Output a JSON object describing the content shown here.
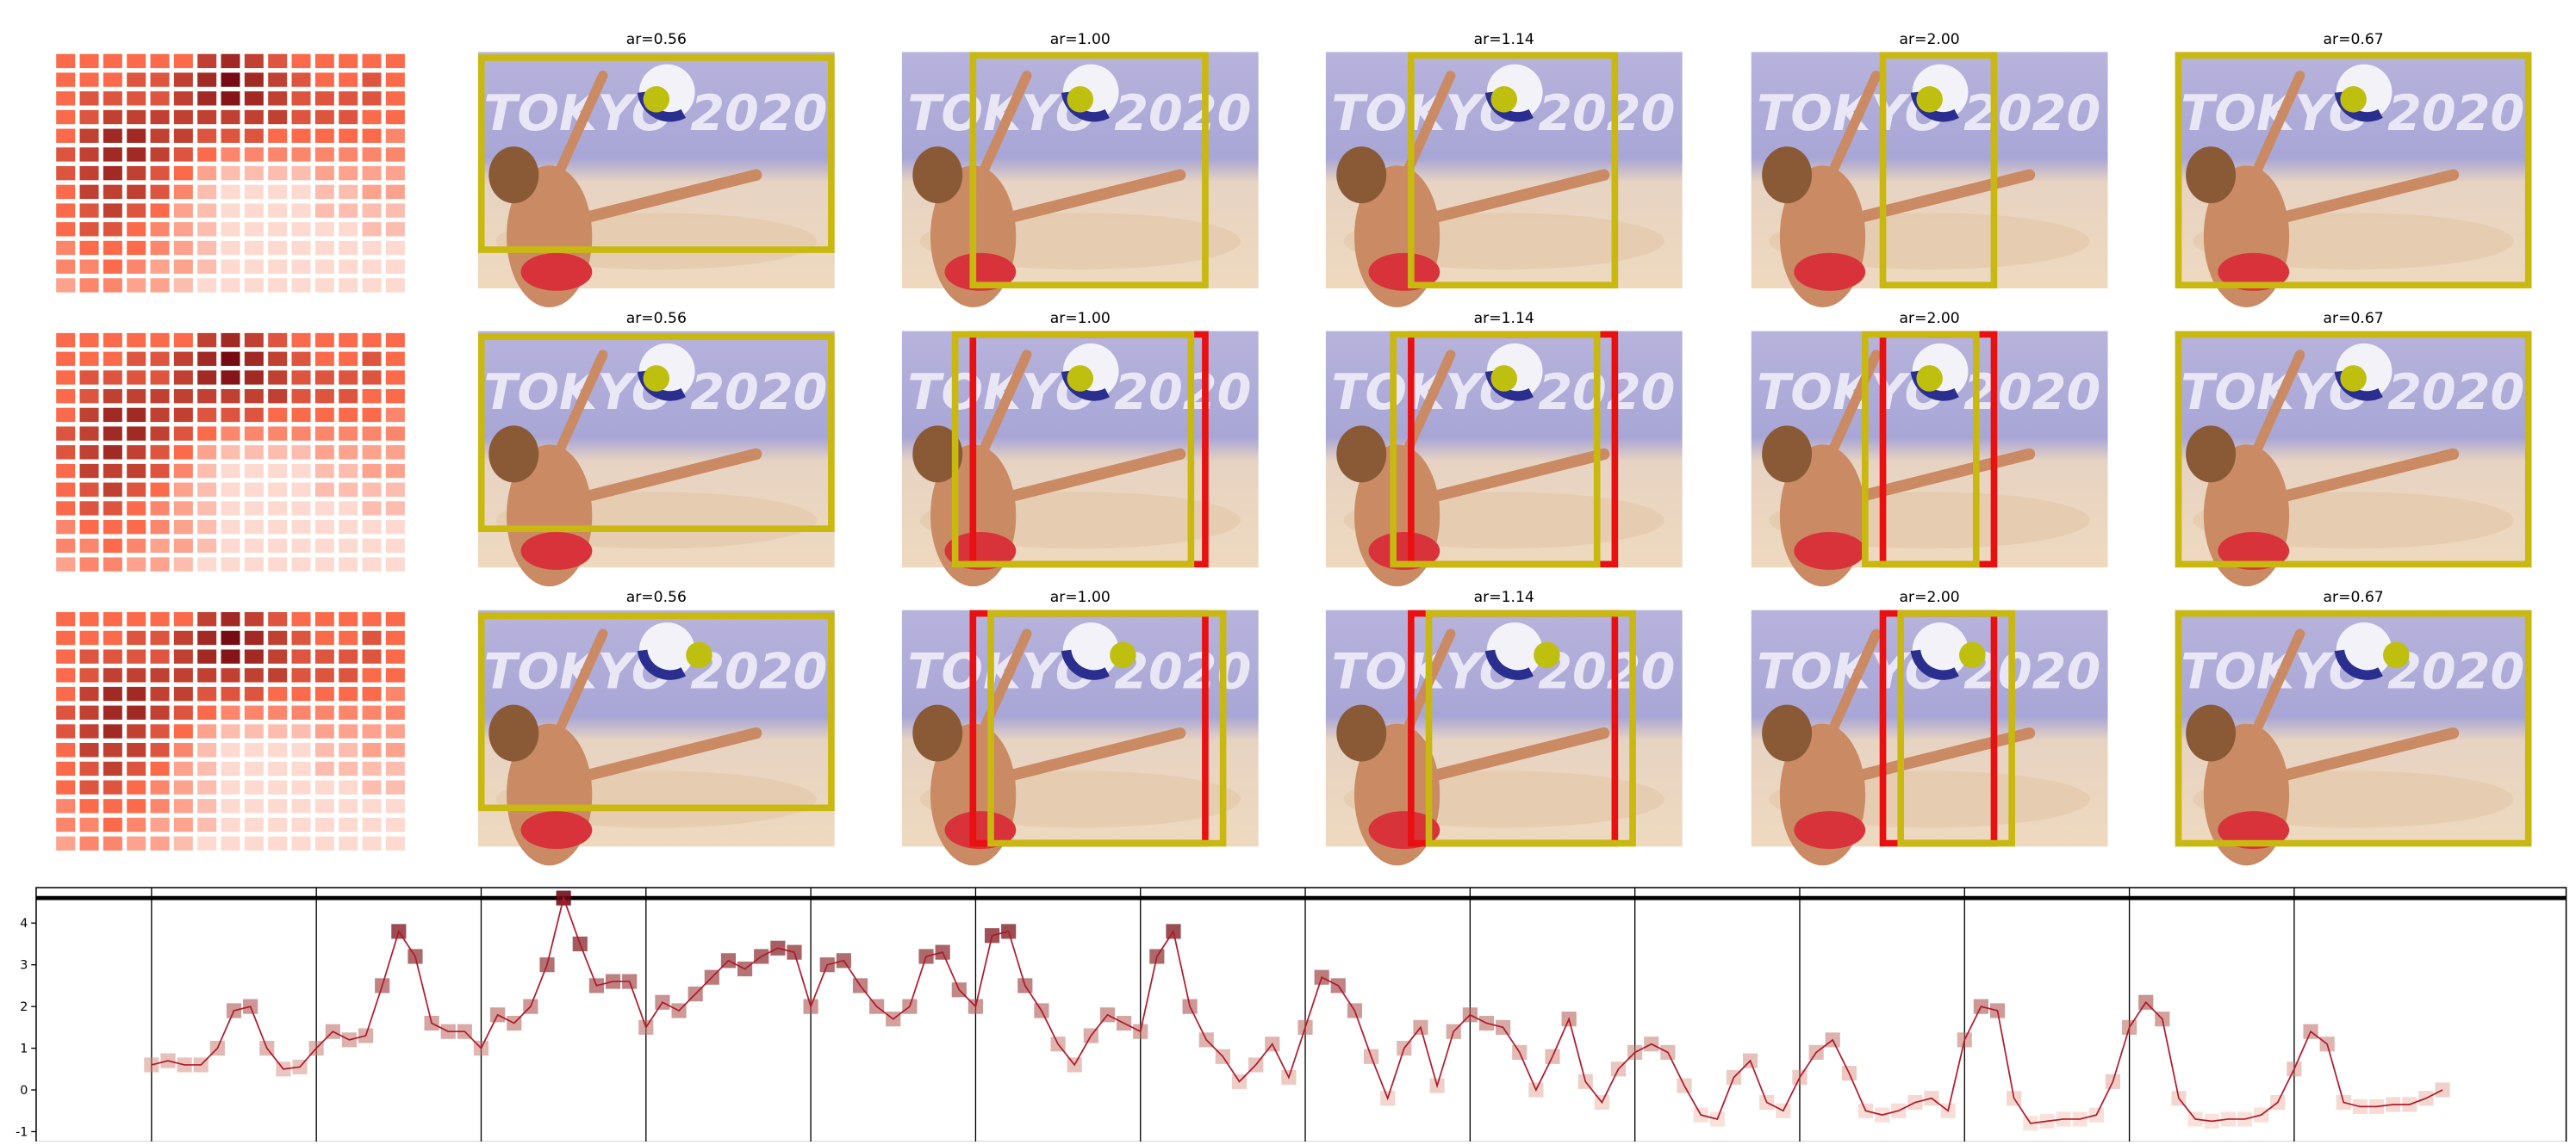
{
  "rows": [
    {
      "titles": [
        "ar=0.56",
        "ar=1.00",
        "ar=1.14",
        "ar=2.00",
        "ar=0.67"
      ]
    },
    {
      "titles": [
        "ar=0.56",
        "ar=1.00",
        "ar=1.14",
        "ar=2.00",
        "ar=0.67"
      ]
    },
    {
      "titles": [
        "ar=0.56",
        "ar=1.00",
        "ar=1.14",
        "ar=2.00",
        "ar=0.67"
      ]
    }
  ],
  "photo_text": "TOKYO 2020",
  "heatmap": [
    [
      0.5,
      0.5,
      0.5,
      0.5,
      0.5,
      0.5,
      0.7,
      0.8,
      0.7,
      0.6,
      0.5,
      0.5,
      0.5,
      0.5,
      0.5
    ],
    [
      0.5,
      0.5,
      0.5,
      0.6,
      0.6,
      0.7,
      0.8,
      0.95,
      0.8,
      0.7,
      0.6,
      0.5,
      0.5,
      0.6,
      0.5
    ],
    [
      0.5,
      0.6,
      0.6,
      0.6,
      0.6,
      0.7,
      0.8,
      0.9,
      0.8,
      0.7,
      0.6,
      0.6,
      0.6,
      0.6,
      0.5
    ],
    [
      0.5,
      0.6,
      0.7,
      0.7,
      0.7,
      0.7,
      0.7,
      0.7,
      0.7,
      0.7,
      0.6,
      0.6,
      0.6,
      0.5,
      0.5
    ],
    [
      0.5,
      0.7,
      0.8,
      0.8,
      0.7,
      0.7,
      0.6,
      0.6,
      0.6,
      0.5,
      0.5,
      0.5,
      0.5,
      0.5,
      0.4
    ],
    [
      0.6,
      0.7,
      0.8,
      0.8,
      0.7,
      0.6,
      0.5,
      0.4,
      0.4,
      0.4,
      0.4,
      0.4,
      0.4,
      0.4,
      0.4
    ],
    [
      0.6,
      0.7,
      0.8,
      0.7,
      0.6,
      0.5,
      0.3,
      0.2,
      0.2,
      0.2,
      0.2,
      0.3,
      0.3,
      0.3,
      0.3
    ],
    [
      0.5,
      0.7,
      0.7,
      0.7,
      0.6,
      0.4,
      0.2,
      0.1,
      0.1,
      0.1,
      0.1,
      0.2,
      0.2,
      0.3,
      0.3
    ],
    [
      0.5,
      0.6,
      0.7,
      0.6,
      0.5,
      0.3,
      0.2,
      0.1,
      0.1,
      0.1,
      0.1,
      0.2,
      0.2,
      0.2,
      0.2
    ],
    [
      0.5,
      0.6,
      0.6,
      0.5,
      0.4,
      0.3,
      0.2,
      0.1,
      0.1,
      0.1,
      0.1,
      0.1,
      0.1,
      0.2,
      0.2
    ],
    [
      0.4,
      0.5,
      0.5,
      0.5,
      0.4,
      0.3,
      0.2,
      0.1,
      0.1,
      0.1,
      0.1,
      0.1,
      0.1,
      0.1,
      0.1
    ],
    [
      0.4,
      0.4,
      0.5,
      0.4,
      0.3,
      0.3,
      0.2,
      0.1,
      0.1,
      0.1,
      0.1,
      0.1,
      0.1,
      0.1,
      0.1
    ],
    [
      0.3,
      0.4,
      0.4,
      0.3,
      0.3,
      0.2,
      0.1,
      0.1,
      0.1,
      0.1,
      0.1,
      0.1,
      0.1,
      0.1,
      0.1
    ]
  ],
  "heatmap_colors": [
    "#fff5f0",
    "#fb6a4a",
    "#67000d"
  ],
  "chart_data": {
    "type": "line",
    "x": [
      0,
      2,
      4,
      6,
      8,
      10,
      12,
      14,
      16,
      18,
      20,
      22,
      24,
      26,
      28,
      30,
      32,
      34,
      36,
      38,
      40,
      42,
      44,
      46,
      48,
      50,
      52,
      54,
      56,
      58,
      60,
      62,
      64,
      66,
      68,
      70,
      72,
      74,
      76,
      78,
      80,
      82,
      84,
      86,
      88,
      90,
      92,
      94,
      96,
      98,
      100,
      102,
      104,
      106,
      108,
      110,
      112,
      114,
      116,
      118,
      120,
      122,
      124,
      126,
      128,
      130,
      132,
      134,
      136,
      138,
      140,
      142,
      144,
      146,
      148,
      150,
      152,
      154,
      156,
      158,
      160,
      162,
      164,
      166,
      168,
      170,
      172,
      174,
      176,
      178,
      180,
      182,
      184,
      186,
      188,
      190,
      192,
      194,
      196,
      198,
      200,
      202,
      204,
      206,
      208,
      210,
      212,
      214,
      216,
      218,
      220,
      222,
      224,
      226,
      228,
      230,
      232,
      234,
      236,
      238,
      240,
      242,
      244,
      246,
      248,
      250,
      252,
      254,
      256,
      258,
      260,
      262,
      264,
      266,
      268,
      270,
      272,
      274,
      276,
      278
    ],
    "values": [
      0.6,
      0.7,
      0.6,
      0.6,
      1.0,
      1.9,
      2.0,
      1.0,
      0.5,
      0.55,
      1.0,
      1.4,
      1.2,
      1.3,
      2.5,
      3.8,
      3.2,
      1.6,
      1.4,
      1.4,
      1.0,
      1.8,
      1.6,
      2.0,
      3.0,
      4.6,
      3.5,
      2.5,
      2.6,
      2.6,
      1.5,
      2.1,
      1.9,
      2.3,
      2.7,
      3.1,
      2.9,
      3.2,
      3.4,
      3.3,
      2.0,
      3.0,
      3.1,
      2.5,
      2.0,
      1.7,
      2.0,
      3.2,
      3.3,
      2.4,
      2.0,
      3.7,
      3.8,
      2.5,
      1.9,
      1.1,
      0.6,
      1.3,
      1.8,
      1.6,
      1.4,
      3.2,
      3.8,
      2.0,
      1.2,
      0.8,
      0.2,
      0.6,
      1.1,
      0.3,
      1.5,
      2.7,
      2.5,
      1.9,
      0.8,
      -0.2,
      1.0,
      1.5,
      0.1,
      1.4,
      1.8,
      1.6,
      1.5,
      0.9,
      0.0,
      0.8,
      1.7,
      0.2,
      -0.3,
      0.5,
      0.9,
      1.1,
      0.9,
      0.1,
      -0.6,
      -0.7,
      0.3,
      0.7,
      -0.3,
      -0.5,
      0.3,
      0.9,
      1.2,
      0.4,
      -0.5,
      -0.6,
      -0.5,
      -0.3,
      -0.2,
      -0.5,
      1.2,
      2.0,
      1.9,
      -0.2,
      -0.8,
      -0.75,
      -0.7,
      -0.7,
      -0.6,
      0.2,
      1.5,
      2.1,
      1.7,
      -0.2,
      -0.7,
      -0.75,
      -0.7,
      -0.7,
      -0.6,
      -0.3,
      0.5,
      1.4,
      1.1,
      -0.3,
      -0.4,
      -0.4,
      -0.35,
      -0.35,
      -0.2,
      0.0
    ],
    "color": "#b2182b",
    "marker_colors": [
      "#fcbba1",
      "#67000d"
    ],
    "xlim": [
      -14,
      293
    ],
    "ylim": [
      -1.25,
      4.85
    ],
    "xticks": [
      0,
      50,
      100,
      150,
      200,
      250
    ],
    "yticks": [
      -1,
      0,
      1,
      2,
      3,
      4
    ],
    "vlines": [
      0,
      20,
      40,
      60,
      80,
      100,
      120,
      140,
      160,
      180,
      200,
      220,
      240,
      260
    ],
    "hline": 4.6
  }
}
